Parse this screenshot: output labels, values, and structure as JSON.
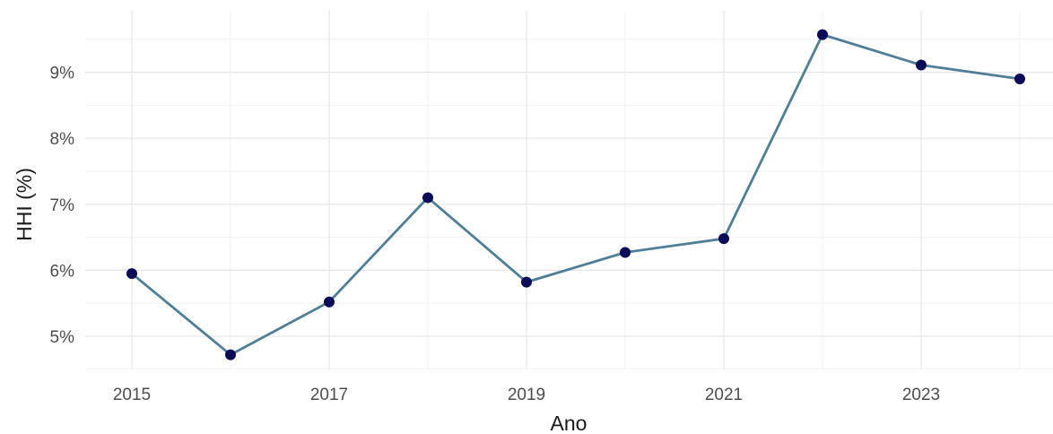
{
  "chart_data": {
    "type": "line",
    "title": "",
    "xlabel": "Ano",
    "ylabel": "HHI (%)",
    "x": [
      2015,
      2016,
      2017,
      2018,
      2019,
      2020,
      2021,
      2022,
      2023,
      2024
    ],
    "series": [
      {
        "values": [
          5.95,
          4.72,
          5.52,
          7.1,
          5.82,
          6.27,
          6.48,
          9.57,
          9.11,
          8.9
        ],
        "line_color": "#4f7f97",
        "point_color": "#0b0b57"
      }
    ],
    "xlim": [
      2014.5,
      2024.5
    ],
    "ylim": [
      4.5,
      9.8
    ],
    "x_ticks": [
      2015,
      2017,
      2019,
      2021,
      2023
    ],
    "x_tick_labels": [
      "2015",
      "2017",
      "2019",
      "2021",
      "2023"
    ],
    "y_ticks": [
      5,
      6,
      7,
      8,
      9
    ],
    "y_tick_labels": [
      "5%",
      "6%",
      "7%",
      "8%",
      "9%"
    ],
    "grid": true,
    "legend": "none"
  }
}
